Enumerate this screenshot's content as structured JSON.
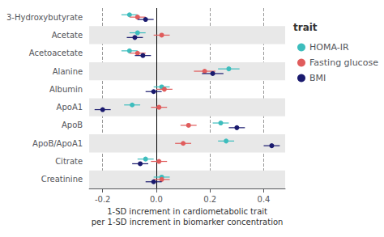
{
  "chart_data": {
    "type": "forest",
    "xlabel": "1-SD increment in cardiometabolic trait\nper 1-SD increment in biomarker concentration",
    "legend_title": "trait",
    "categories": [
      "3-Hydroxybutyrate",
      "Acetate",
      "Acetoacetate",
      "Alanine",
      "Albumin",
      "ApoA1",
      "ApoB",
      "ApoB/ApoA1",
      "Citrate",
      "Creatinine"
    ],
    "series": [
      {
        "name": "HOMA-IR",
        "color": "#3dbdbd",
        "values": [
          -0.1,
          -0.07,
          -0.1,
          0.27,
          0.02,
          -0.09,
          0.24,
          0.26,
          -0.04,
          0.02
        ],
        "ci_lo": [
          -0.13,
          -0.1,
          -0.13,
          0.23,
          -0.01,
          -0.12,
          0.21,
          0.23,
          -0.07,
          -0.01
        ],
        "ci_hi": [
          -0.07,
          -0.04,
          -0.07,
          0.31,
          0.05,
          -0.06,
          0.27,
          0.29,
          -0.01,
          0.05
        ]
      },
      {
        "name": "Fasting glucose",
        "color": "#e05c5c",
        "values": [
          -0.07,
          0.02,
          -0.07,
          0.18,
          0.03,
          0.01,
          0.12,
          0.1,
          0.01,
          0.02
        ],
        "ci_lo": [
          -0.1,
          -0.01,
          -0.1,
          0.14,
          0.0,
          -0.02,
          0.09,
          0.07,
          -0.02,
          -0.01
        ],
        "ci_hi": [
          -0.04,
          0.05,
          -0.04,
          0.22,
          0.06,
          0.04,
          0.15,
          0.13,
          0.04,
          0.05
        ]
      },
      {
        "name": "BMI",
        "color": "#1a1a6e",
        "values": [
          -0.04,
          -0.08,
          -0.05,
          0.21,
          -0.01,
          -0.2,
          0.3,
          0.43,
          -0.06,
          -0.01
        ],
        "ci_lo": [
          -0.07,
          -0.11,
          -0.08,
          0.17,
          -0.04,
          -0.23,
          0.27,
          0.4,
          -0.09,
          -0.04
        ],
        "ci_hi": [
          -0.01,
          -0.05,
          -0.02,
          0.25,
          0.02,
          -0.17,
          0.33,
          0.46,
          -0.03,
          0.02
        ]
      }
    ],
    "xlim": [
      -0.25,
      0.48
    ],
    "xticks": [
      -0.2,
      {
        "value": 0,
        "label": "0.0"
      },
      0.2,
      0.4
    ],
    "vline": 0,
    "grid": true,
    "legend": "right",
    "marker": "circle"
  }
}
